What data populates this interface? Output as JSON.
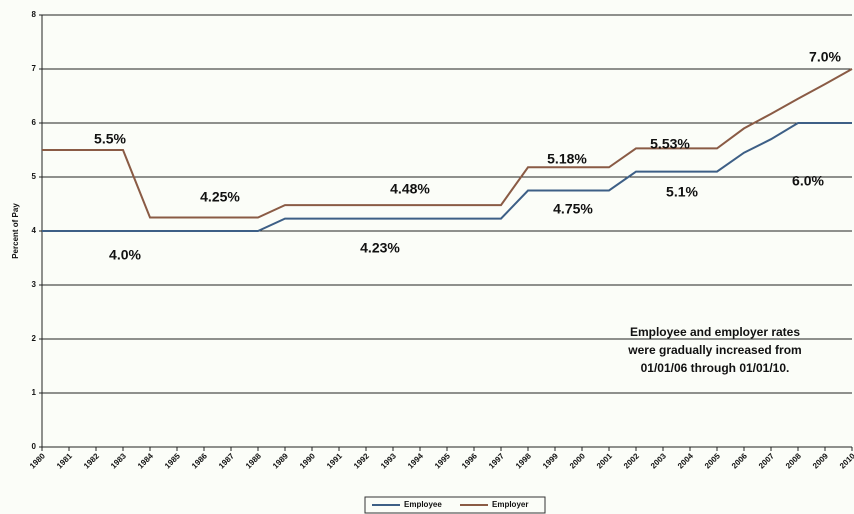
{
  "chart_data": {
    "type": "line",
    "ylabel": "Percent of Pay",
    "categories": [
      "1980",
      "1981",
      "1982",
      "1983",
      "1984",
      "1985",
      "1986",
      "1987",
      "1988",
      "1989",
      "1990",
      "1991",
      "1992",
      "1993",
      "1994",
      "1995",
      "1996",
      "1997",
      "1998",
      "1999",
      "2000",
      "2001",
      "2002",
      "2003",
      "2004",
      "2005",
      "2006",
      "2007",
      "2008",
      "2009",
      "2010"
    ],
    "series": [
      {
        "name": "Employee",
        "color": "#3d5f86",
        "values": [
          4.0,
          4.0,
          4.0,
          4.0,
          4.0,
          4.0,
          4.0,
          4.0,
          4.0,
          4.23,
          4.23,
          4.23,
          4.23,
          4.23,
          4.23,
          4.23,
          4.23,
          4.23,
          4.75,
          4.75,
          4.75,
          4.75,
          5.1,
          5.1,
          5.1,
          5.1,
          5.45,
          5.7,
          6.0,
          6.0,
          6.0
        ]
      },
      {
        "name": "Employer",
        "color": "#8a5b45",
        "values": [
          5.5,
          5.5,
          5.5,
          5.5,
          4.25,
          4.25,
          4.25,
          4.25,
          4.25,
          4.48,
          4.48,
          4.48,
          4.48,
          4.48,
          4.48,
          4.48,
          4.48,
          4.48,
          5.18,
          5.18,
          5.18,
          5.18,
          5.53,
          5.53,
          5.53,
          5.53,
          5.9,
          6.17,
          6.45,
          6.72,
          7.0
        ]
      }
    ],
    "ylim": [
      0,
      8
    ],
    "yticks": [
      0,
      1,
      2,
      3,
      4,
      5,
      6,
      7,
      8
    ],
    "grid": true,
    "legend": "bottom",
    "annotations": [
      "5.5%",
      "4.25%",
      "4.48%",
      "5.18%",
      "5.53%",
      "7.0%",
      "4.0%",
      "4.23%",
      "4.75%",
      "5.1%",
      "6.0%"
    ],
    "note": [
      "Employee and employer rates",
      "were gradually increased from",
      "01/01/06 through 01/01/10."
    ]
  }
}
